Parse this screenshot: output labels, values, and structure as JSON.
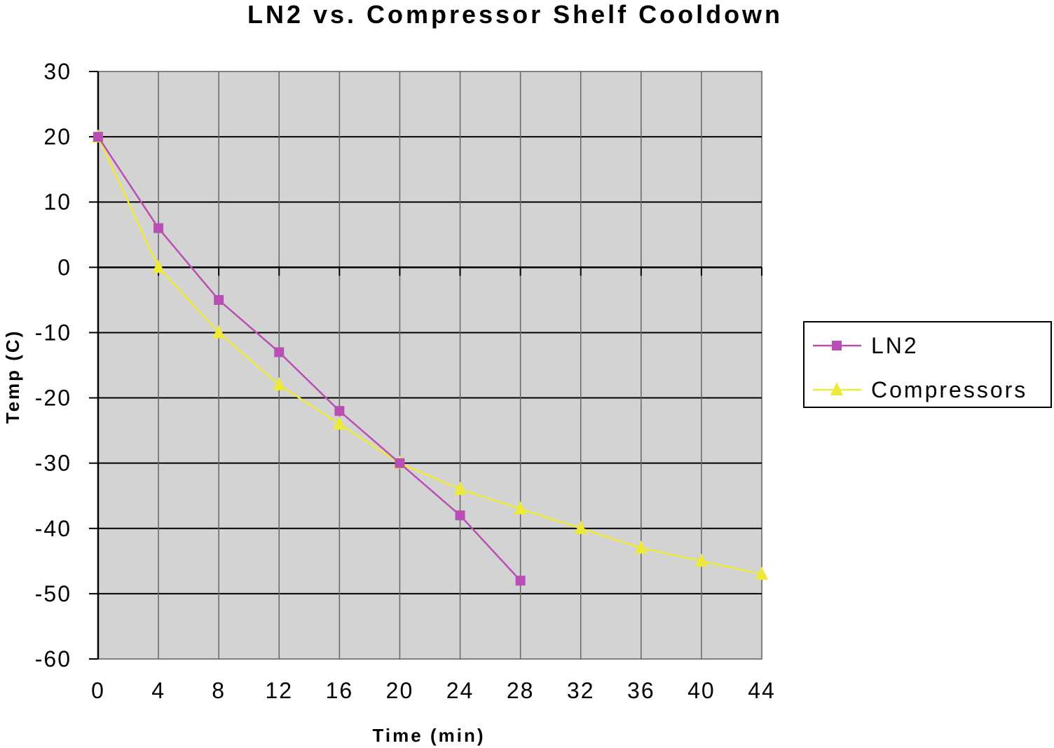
{
  "chart_data": {
    "type": "line",
    "title": "LN2 vs. Compressor Shelf Cooldown",
    "xlabel": "Time (min)",
    "ylabel": "Temp (C)",
    "xlim": [
      0,
      44
    ],
    "ylim": [
      -60,
      30
    ],
    "x_ticks": [
      "0",
      "4",
      "8",
      "12",
      "16",
      "20",
      "24",
      "28",
      "32",
      "36",
      "40",
      "44"
    ],
    "y_ticks": [
      "30",
      "20",
      "10",
      "0",
      "-10",
      "-20",
      "-30",
      "-40",
      "-50",
      "-60"
    ],
    "grid": true,
    "legend_position": "right",
    "plot_background": "#d3d3d3",
    "series": [
      {
        "name": "LN2",
        "color": "#b94fb5",
        "marker": "square",
        "x": [
          0,
          4,
          8,
          12,
          16,
          20,
          24,
          28
        ],
        "y": [
          20,
          6,
          -5,
          -13,
          -22,
          -30,
          -38,
          -48
        ]
      },
      {
        "name": "Compressors",
        "color": "#eeea3a",
        "marker": "triangle",
        "x": [
          0,
          4,
          8,
          12,
          16,
          20,
          24,
          28,
          32,
          36,
          40,
          44
        ],
        "y": [
          20,
          0,
          -10,
          -18,
          -24,
          -30,
          -34,
          -37,
          -40,
          -43,
          -45,
          -47
        ]
      }
    ]
  }
}
